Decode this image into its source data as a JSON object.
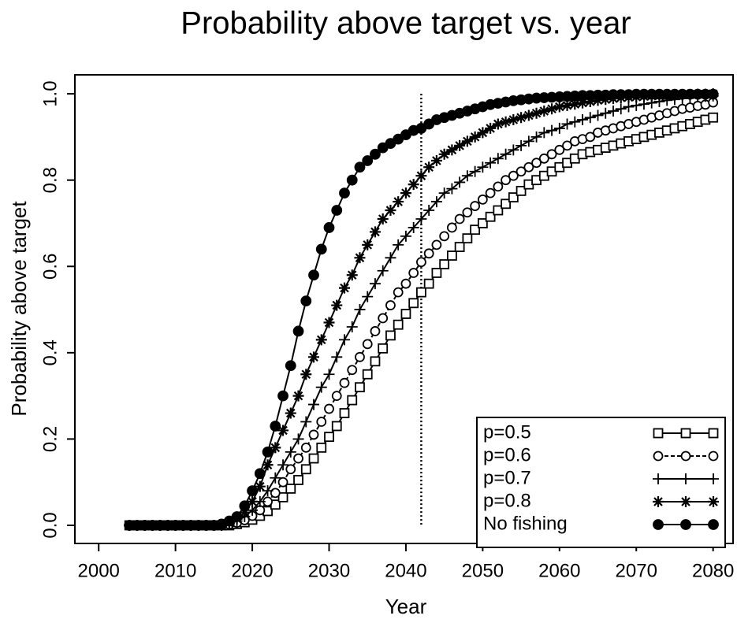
{
  "chart_data": {
    "type": "line",
    "title": "Probability above target vs. year",
    "xlabel": "Year",
    "ylabel": "Probability above target",
    "x": [
      2004,
      2005,
      2006,
      2007,
      2008,
      2009,
      2010,
      2011,
      2012,
      2013,
      2014,
      2015,
      2016,
      2017,
      2018,
      2019,
      2020,
      2021,
      2022,
      2023,
      2024,
      2025,
      2026,
      2027,
      2028,
      2029,
      2030,
      2031,
      2032,
      2033,
      2034,
      2035,
      2036,
      2037,
      2038,
      2039,
      2040,
      2041,
      2042,
      2043,
      2044,
      2045,
      2046,
      2047,
      2048,
      2049,
      2050,
      2051,
      2052,
      2053,
      2054,
      2055,
      2056,
      2057,
      2058,
      2059,
      2060,
      2061,
      2062,
      2063,
      2064,
      2065,
      2066,
      2067,
      2068,
      2069,
      2070,
      2071,
      2072,
      2073,
      2074,
      2075,
      2076,
      2077,
      2078,
      2079,
      2080
    ],
    "series": [
      {
        "name": "p=0.5",
        "color": "#000000",
        "marker": "square",
        "dashed": false,
        "values": [
          0,
          0,
          0,
          0,
          0,
          0,
          0,
          0,
          0,
          0,
          0,
          0,
          0,
          0,
          0.003,
          0.007,
          0.013,
          0.022,
          0.033,
          0.048,
          0.065,
          0.085,
          0.105,
          0.13,
          0.155,
          0.18,
          0.205,
          0.23,
          0.26,
          0.29,
          0.32,
          0.35,
          0.38,
          0.41,
          0.44,
          0.465,
          0.49,
          0.515,
          0.54,
          0.56,
          0.585,
          0.605,
          0.625,
          0.645,
          0.665,
          0.685,
          0.7,
          0.715,
          0.73,
          0.745,
          0.76,
          0.775,
          0.79,
          0.8,
          0.81,
          0.82,
          0.83,
          0.84,
          0.85,
          0.86,
          0.865,
          0.87,
          0.875,
          0.88,
          0.885,
          0.89,
          0.895,
          0.9,
          0.905,
          0.91,
          0.915,
          0.92,
          0.925,
          0.93,
          0.935,
          0.94,
          0.945
        ]
      },
      {
        "name": "p=0.6",
        "color": "#000000",
        "marker": "circle-open",
        "dashed": true,
        "values": [
          0,
          0,
          0,
          0,
          0,
          0,
          0,
          0,
          0,
          0,
          0,
          0,
          0,
          0.002,
          0.006,
          0.012,
          0.022,
          0.035,
          0.055,
          0.075,
          0.1,
          0.13,
          0.155,
          0.18,
          0.21,
          0.24,
          0.27,
          0.3,
          0.33,
          0.36,
          0.39,
          0.42,
          0.45,
          0.48,
          0.51,
          0.54,
          0.56,
          0.585,
          0.61,
          0.63,
          0.65,
          0.67,
          0.69,
          0.71,
          0.725,
          0.74,
          0.755,
          0.77,
          0.785,
          0.8,
          0.81,
          0.82,
          0.83,
          0.84,
          0.85,
          0.86,
          0.87,
          0.88,
          0.89,
          0.895,
          0.9,
          0.91,
          0.915,
          0.92,
          0.925,
          0.93,
          0.935,
          0.94,
          0.945,
          0.95,
          0.955,
          0.96,
          0.965,
          0.968,
          0.972,
          0.975,
          0.98
        ]
      },
      {
        "name": "p=0.7",
        "color": "#000000",
        "marker": "plus",
        "dashed": false,
        "values": [
          0,
          0,
          0,
          0,
          0,
          0,
          0,
          0,
          0,
          0,
          0,
          0,
          0,
          0.003,
          0.01,
          0.02,
          0.035,
          0.055,
          0.08,
          0.11,
          0.14,
          0.17,
          0.2,
          0.24,
          0.28,
          0.32,
          0.35,
          0.39,
          0.43,
          0.46,
          0.5,
          0.53,
          0.56,
          0.59,
          0.62,
          0.65,
          0.67,
          0.69,
          0.71,
          0.73,
          0.75,
          0.77,
          0.78,
          0.795,
          0.81,
          0.82,
          0.83,
          0.84,
          0.85,
          0.86,
          0.87,
          0.88,
          0.89,
          0.9,
          0.91,
          0.915,
          0.92,
          0.93,
          0.935,
          0.94,
          0.945,
          0.95,
          0.955,
          0.96,
          0.965,
          0.97,
          0.973,
          0.976,
          0.979,
          0.982,
          0.985,
          0.987,
          0.989,
          0.991,
          0.993,
          0.994,
          0.995
        ]
      },
      {
        "name": "p=0.8",
        "color": "#000000",
        "marker": "asterisk",
        "dashed": false,
        "values": [
          0,
          0,
          0,
          0,
          0,
          0,
          0,
          0,
          0,
          0,
          0,
          0,
          0,
          0.005,
          0.015,
          0.03,
          0.055,
          0.09,
          0.14,
          0.18,
          0.22,
          0.26,
          0.3,
          0.35,
          0.39,
          0.43,
          0.47,
          0.51,
          0.55,
          0.58,
          0.62,
          0.65,
          0.68,
          0.71,
          0.73,
          0.75,
          0.77,
          0.79,
          0.81,
          0.83,
          0.845,
          0.86,
          0.87,
          0.88,
          0.89,
          0.9,
          0.91,
          0.92,
          0.93,
          0.935,
          0.94,
          0.945,
          0.95,
          0.955,
          0.96,
          0.965,
          0.97,
          0.973,
          0.976,
          0.979,
          0.982,
          0.985,
          0.987,
          0.989,
          0.991,
          0.992,
          0.993,
          0.994,
          0.995,
          0.996,
          0.997,
          0.997,
          0.998,
          0.998,
          0.999,
          0.999,
          1.0
        ]
      },
      {
        "name": "No fishing",
        "color": "#000000",
        "marker": "circle",
        "dashed": false,
        "values": [
          0,
          0,
          0,
          0,
          0,
          0,
          0,
          0,
          0,
          0,
          0,
          0,
          0.003,
          0.01,
          0.02,
          0.045,
          0.08,
          0.12,
          0.17,
          0.23,
          0.3,
          0.37,
          0.45,
          0.52,
          0.58,
          0.64,
          0.69,
          0.73,
          0.77,
          0.8,
          0.83,
          0.845,
          0.86,
          0.875,
          0.885,
          0.895,
          0.905,
          0.915,
          0.92,
          0.93,
          0.94,
          0.945,
          0.95,
          0.955,
          0.96,
          0.965,
          0.97,
          0.975,
          0.978,
          0.981,
          0.984,
          0.986,
          0.988,
          0.99,
          0.991,
          0.992,
          0.993,
          0.994,
          0.995,
          0.996,
          0.996,
          0.997,
          0.997,
          0.998,
          0.998,
          0.998,
          0.999,
          0.999,
          0.999,
          0.999,
          0.999,
          0.999,
          0.999,
          0.999,
          0.999,
          0.999,
          0.999
        ]
      }
    ],
    "xlim": [
      1996.9,
      2082.6
    ],
    "ylim": [
      -0.042,
      1.044
    ],
    "xticks": [
      2000,
      2010,
      2020,
      2030,
      2040,
      2050,
      2060,
      2070,
      2080
    ],
    "yticks": [
      {
        "value": 0,
        "label": "0.0"
      },
      {
        "value": 0.2,
        "label": "0.2"
      },
      {
        "value": 0.4,
        "label": "0.4"
      },
      {
        "value": 0.6,
        "label": "0.6"
      },
      {
        "value": 0.8,
        "label": "0.8"
      },
      {
        "value": 1,
        "label": "1.0"
      }
    ],
    "vline": 2042,
    "legend": "bottom right",
    "grid": false
  }
}
